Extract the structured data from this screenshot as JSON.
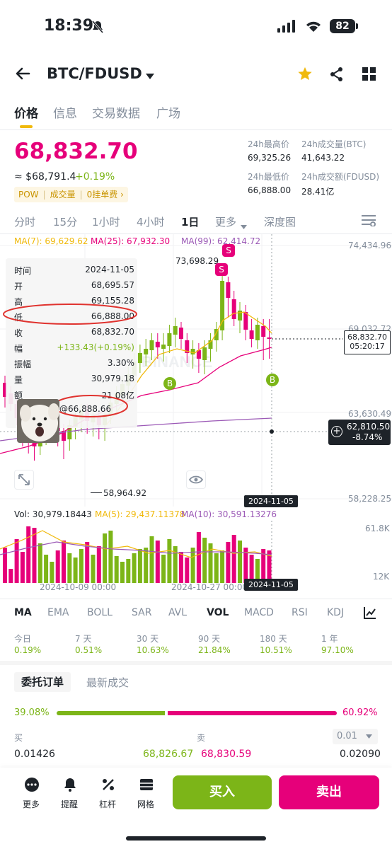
{
  "status": {
    "time": "18:39",
    "battery": "82"
  },
  "header": {
    "pair": "BTC/FDUSD"
  },
  "tabs": [
    "价格",
    "信息",
    "交易数据",
    "广场"
  ],
  "price": {
    "last": "68,832.70",
    "usd": "≈ $68,791.4",
    "change": "+0.19%",
    "tags": {
      "pow": "POW",
      "volume": "成交量",
      "zero_fee": "0挂单费 ›"
    }
  },
  "stats": {
    "high_label": "24h最高价",
    "high": "69,325.26",
    "vol_btc_label": "24h成交量(BTC)",
    "vol_btc": "41,643.22",
    "low_label": "24h最低价",
    "low": "66,888.00",
    "vol_quote_label": "24h成交额(FDUSD)",
    "vol_quote": "28.41亿"
  },
  "intervals": [
    "分时",
    "15分",
    "1小时",
    "4小时",
    "1日",
    "更多",
    "深度图"
  ],
  "ma_legend": {
    "ma7": "MA(7): 69,629.62",
    "ma25": "MA(25): 67,932.30",
    "ma99": "MA(99): 62,414.72"
  },
  "axis_right": [
    "74,434.96",
    "69,032.72",
    "63,630.49",
    "58,228.25"
  ],
  "tooltip": {
    "rows": [
      {
        "k": "时间",
        "v": "2024-11-05"
      },
      {
        "k": "开",
        "v": "68,695.57"
      },
      {
        "k": "高",
        "v": "69,155.28"
      },
      {
        "k": "低",
        "v": "66,888.00"
      },
      {
        "k": "收",
        "v": "68,832.70"
      },
      {
        "k": "幅",
        "v": "+133.43(+0.19%)"
      },
      {
        "k": "振幅",
        "v": "3.30%"
      },
      {
        "k": "量",
        "v": "30,979.18"
      },
      {
        "k": "额",
        "v": "21.08亿"
      }
    ],
    "extra": "@66,888.66"
  },
  "chart_labels": {
    "high_mark": "73,698.29",
    "low_mark": "58,964.92",
    "current_price": "68,832.70",
    "countdown": "05:20:17",
    "crosshair_price": "62,810.50",
    "crosshair_pct": "-8.74%",
    "date_top": "2024-11-05",
    "date_vol": "2024-11-05",
    "sell_badge": "S",
    "buy_badge": "B",
    "watermark": "BINANCE"
  },
  "volume": {
    "vol": "Vol: 30,979.18443",
    "ma5": "MA(5): 29,437.11378",
    "ma10": "MA(10): 30,591.13276",
    "axis_top": "61.8K",
    "axis_bottom": "12K",
    "date_a": "2024-10-09 00:00",
    "date_b": "2024-10-27 00:00"
  },
  "indicators": [
    "MA",
    "EMA",
    "BOLL",
    "SAR",
    "AVL",
    "VOL",
    "MACD",
    "RSI",
    "KDJ"
  ],
  "performance": [
    {
      "label": "今日",
      "value": "0.19%"
    },
    {
      "label": "7 天",
      "value": "0.51%"
    },
    {
      "label": "30 天",
      "value": "10.63%"
    },
    {
      "label": "90 天",
      "value": "21.84%"
    },
    {
      "label": "180 天",
      "value": "10.51%"
    },
    {
      "label": "1 年",
      "value": "97.10%"
    }
  ],
  "orderbook": {
    "tab_active": "委托订单",
    "tab_other": "最新成交",
    "buy_pct": "39.08%",
    "sell_pct": "60.92%",
    "buy_ratio": 0.3908,
    "buy_label": "买",
    "sell_label": "卖",
    "precision": "0.01",
    "bid_qty": "0.01426",
    "bid_price": "68,826.67",
    "ask_price": "68,830.59",
    "ask_qty": "0.02090"
  },
  "bottom": {
    "more": "更多",
    "alert": "提醒",
    "leverage": "杠杆",
    "grid": "网格",
    "buy": "买入",
    "sell": "卖出"
  },
  "colors": {
    "up": "#7cb518",
    "down": "#e6007a",
    "accent": "#f0b90b"
  }
}
